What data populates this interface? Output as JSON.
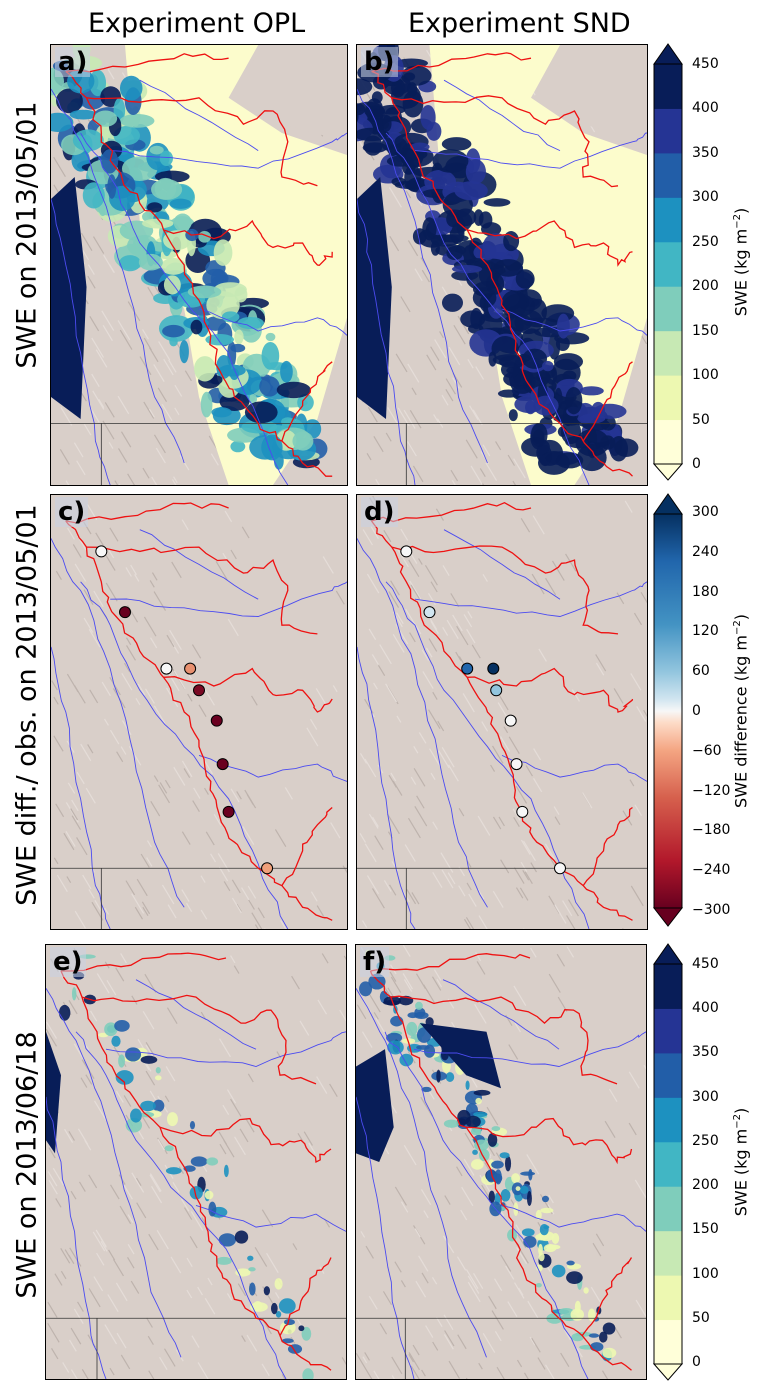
{
  "columns": [
    "Experiment OPL",
    "Experiment SND"
  ],
  "rows": [
    "SWE on 2013/05/01",
    "SWE diff./ obs. on 2013/05/01",
    "SWE on 2013/06/18"
  ],
  "panels": [
    "a)",
    "b)",
    "c)",
    "d)",
    "e)",
    "f)"
  ],
  "colorbars": {
    "swe": {
      "label_main": "SWE (kg m",
      "label_sup": "−2",
      "label_end": ")",
      "ticks": [
        "450",
        "400",
        "350",
        "300",
        "250",
        "200",
        "150",
        "100",
        "50",
        "0"
      ],
      "colors": [
        "#ffffd9",
        "#edf8b1",
        "#c7e9b4",
        "#7fcdbb",
        "#41b6c4",
        "#1d91c0",
        "#225ea8",
        "#253494",
        "#081d58"
      ]
    },
    "diff": {
      "label_main": "SWE difference (kg m",
      "label_sup": "−2",
      "label_end": ")",
      "ticks": [
        "300",
        "240",
        "180",
        "120",
        "60",
        "0",
        "−60",
        "−120",
        "−180",
        "−240",
        "−300"
      ]
    }
  },
  "stations": {
    "c": [
      "#f7f7f7",
      "#67001f",
      "#f7f7f7",
      "#e8906f",
      "#7a0a24",
      "#6a0020",
      "#6a0020",
      "#6a0020",
      "#f0a07a"
    ],
    "d": [
      "#f7f7f7",
      "#d1e5f0",
      "#2166ac",
      "#053061",
      "#92c5de",
      "#f7f7f7",
      "#f7f7f7",
      "#f7f7f7",
      "#f7f7f7"
    ]
  }
}
